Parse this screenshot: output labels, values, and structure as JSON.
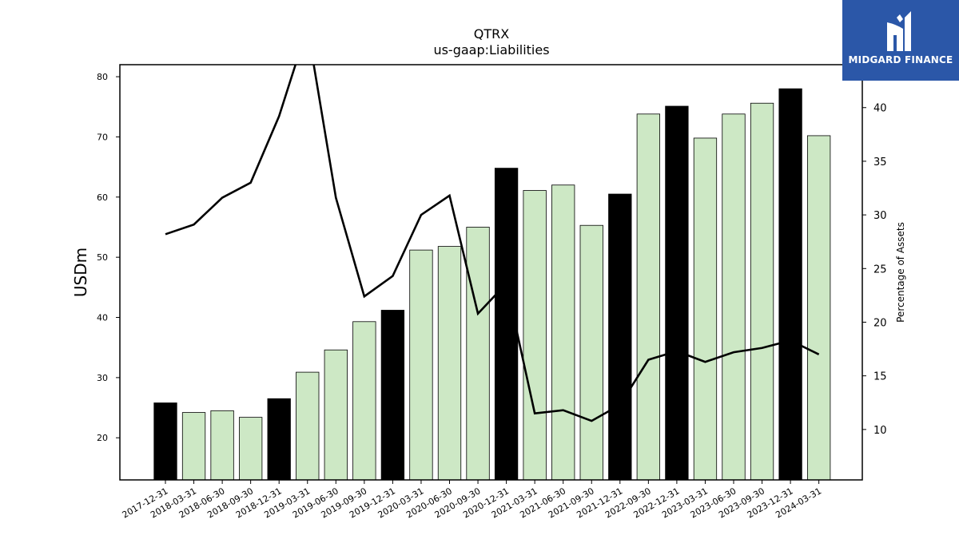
{
  "logo": {
    "text": "MIDGARD FINANCE",
    "icon": "midgard-logo-icon",
    "background": "#2b57a8"
  },
  "chart_data": {
    "type": "bar",
    "title": "QTRX",
    "subtitle": "us-gaap:Liabilities",
    "ylabel": "USDm",
    "y2label": "Percentage of Assets",
    "ylim": [
      13,
      82
    ],
    "y2lim": [
      5.3,
      44
    ],
    "yticks": [
      20,
      30,
      40,
      50,
      60,
      70,
      80
    ],
    "y2ticks": [
      10,
      15,
      20,
      25,
      30,
      35,
      40
    ],
    "categories": [
      "2017-12-31",
      "2018-03-31",
      "2018-06-30",
      "2018-09-30",
      "2018-12-31",
      "2019-03-31",
      "2019-06-30",
      "2019-09-30",
      "2019-12-31",
      "2020-03-31",
      "2020-06-30",
      "2020-09-30",
      "2020-12-31",
      "2021-03-31",
      "2021-06-30",
      "2021-09-30",
      "2021-12-31",
      "2022-09-30",
      "2022-12-31",
      "2023-03-31",
      "2023-06-30",
      "2023-09-30",
      "2023-12-31",
      "2024-03-31"
    ],
    "series": [
      {
        "type": "bar",
        "values": [
          25.8,
          24.2,
          24.5,
          23.4,
          26.5,
          30.9,
          34.6,
          39.3,
          41.2,
          51.2,
          51.8,
          55.0,
          64.8,
          61.1,
          62.0,
          55.3,
          60.5,
          73.8,
          75.1,
          69.8,
          73.8,
          75.6,
          78.0,
          70.2
        ]
      },
      {
        "type": "line",
        "axis": "right",
        "values": [
          28.2,
          29.1,
          31.6,
          33.0,
          39.2,
          47.5,
          31.6,
          22.4,
          24.3,
          30.0,
          31.8,
          20.8,
          23.6,
          11.5,
          11.8,
          10.8,
          12.3,
          16.5,
          17.3,
          16.3,
          17.2,
          17.6,
          18.3,
          17.0
        ]
      }
    ],
    "highlight_indices": [
      0,
      4,
      8,
      12,
      16,
      18,
      22
    ],
    "colors": {
      "bar_highlight": "#000000",
      "bar_default": "#cde8c5",
      "bar_edge": "#000000",
      "line": "#000000"
    },
    "grid": false
  }
}
